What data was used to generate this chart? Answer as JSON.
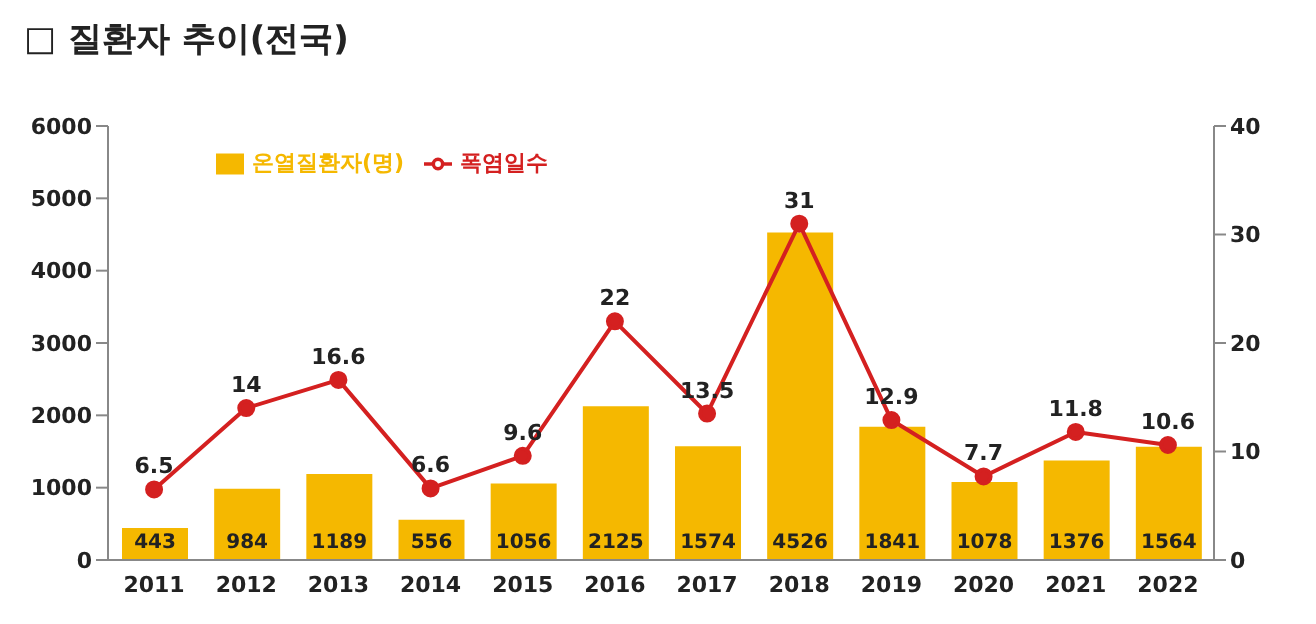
{
  "chart_data": {
    "type": "bar",
    "title": "□ 질환자 추이(전국)",
    "categories": [
      "2011",
      "2012",
      "2013",
      "2014",
      "2015",
      "2016",
      "2017",
      "2018",
      "2019",
      "2020",
      "2021",
      "2022"
    ],
    "series": [
      {
        "name": "온열질환자(명)",
        "color": "#f5b800",
        "values": [
          443,
          984,
          1189,
          556,
          1056,
          2125,
          1574,
          4526,
          1841,
          1078,
          1376,
          1564
        ]
      },
      {
        "name": "폭염일수",
        "type": "line",
        "axis": "y2",
        "color": "#d42020",
        "marker": "circle",
        "values": [
          6.5,
          14,
          16.6,
          6.6,
          9.6,
          22,
          13.5,
          31,
          12.9,
          7.7,
          11.8,
          10.6
        ]
      }
    ],
    "ylim": [
      0,
      6000
    ],
    "yticks": [
      0,
      1000,
      2000,
      3000,
      4000,
      5000,
      6000
    ],
    "y2lim": [
      0,
      40
    ],
    "y2ticks": [
      0,
      10,
      20,
      30,
      40
    ],
    "grid": false,
    "legend": "top left",
    "data_labels": true
  }
}
